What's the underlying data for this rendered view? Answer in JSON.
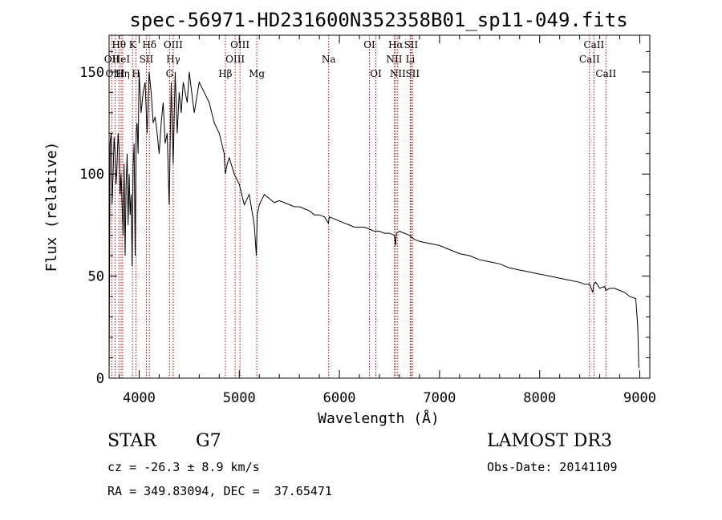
{
  "chart_data": {
    "type": "line",
    "title": "spec-56971-HD231600N352358B01_sp11-049.fits",
    "xlabel": "Wavelength (Å)",
    "ylabel": "Flux (relative)",
    "xlim": [
      3700,
      9100
    ],
    "ylim": [
      0,
      168
    ],
    "xticks": [
      4000,
      5000,
      6000,
      7000,
      8000,
      9000
    ],
    "yticks": [
      0,
      50,
      100,
      150
    ],
    "grid": false,
    "series": [
      {
        "name": "flux",
        "x": [
          3700,
          3710,
          3720,
          3730,
          3740,
          3750,
          3760,
          3770,
          3780,
          3790,
          3800,
          3810,
          3820,
          3830,
          3840,
          3850,
          3860,
          3870,
          3880,
          3890,
          3900,
          3910,
          3920,
          3930,
          3940,
          3950,
          3960,
          3970,
          3980,
          3990,
          4000,
          4020,
          4040,
          4060,
          4080,
          4100,
          4120,
          4140,
          4160,
          4180,
          4200,
          4220,
          4240,
          4260,
          4280,
          4300,
          4320,
          4340,
          4360,
          4380,
          4400,
          4420,
          4440,
          4460,
          4480,
          4500,
          4550,
          4600,
          4650,
          4700,
          4750,
          4800,
          4850,
          4860,
          4880,
          4900,
          4950,
          5000,
          5050,
          5100,
          5150,
          5170,
          5180,
          5200,
          5250,
          5300,
          5350,
          5400,
          5450,
          5500,
          5550,
          5600,
          5650,
          5700,
          5750,
          5800,
          5850,
          5890,
          5900,
          5950,
          6000,
          6050,
          6100,
          6150,
          6200,
          6250,
          6300,
          6350,
          6400,
          6450,
          6500,
          6550,
          6560,
          6570,
          6600,
          6650,
          6700,
          6750,
          6800,
          6900,
          7000,
          7100,
          7200,
          7300,
          7400,
          7500,
          7600,
          7650,
          7700,
          7800,
          7900,
          8000,
          8100,
          8200,
          8300,
          8400,
          8450,
          8500,
          8530,
          8540,
          8560,
          8600,
          8650,
          8660,
          8700,
          8750,
          8800,
          8850,
          8900,
          8960,
          8980,
          8990
        ],
        "values": [
          0,
          115,
          120,
          85,
          100,
          118,
          110,
          95,
          105,
          120,
          112,
          90,
          100,
          85,
          70,
          105,
          60,
          95,
          110,
          75,
          100,
          80,
          90,
          55,
          105,
          115,
          60,
          120,
          125,
          110,
          150,
          130,
          140,
          145,
          120,
          150,
          140,
          125,
          128,
          120,
          110,
          125,
          135,
          115,
          120,
          85,
          145,
          105,
          150,
          120,
          140,
          130,
          145,
          140,
          135,
          150,
          130,
          145,
          140,
          135,
          125,
          120,
          110,
          100,
          105,
          108,
          100,
          95,
          85,
          90,
          75,
          60,
          80,
          85,
          90,
          88,
          86,
          87,
          86,
          85,
          84,
          84,
          83,
          82,
          80,
          80,
          79,
          76,
          79,
          78,
          77,
          76,
          75,
          74,
          74,
          74,
          73,
          72,
          72,
          71,
          71,
          70,
          65,
          71,
          72,
          71,
          70,
          68,
          67,
          66,
          65,
          63,
          61,
          60,
          58,
          57,
          56,
          55,
          54,
          53,
          52,
          51,
          50,
          49,
          48,
          47,
          46,
          46,
          42,
          46,
          47,
          44,
          45,
          43,
          44,
          44,
          43,
          42,
          40,
          39,
          25,
          5
        ]
      }
    ],
    "lines": [
      {
        "name": "HE",
        "wave": 3798,
        "label": "Hθ",
        "row": 0
      },
      {
        "name": "OII",
        "wave": 3727,
        "label": "OII",
        "row": 1
      },
      {
        "name": "OIII",
        "wave": 3760,
        "label": "OIII",
        "row": 2
      },
      {
        "name": "He1",
        "wave": 3820,
        "label": "HeI",
        "row": 1
      },
      {
        "name": "Heta",
        "wave": 3835,
        "label": "Hη",
        "row": 2
      },
      {
        "name": "K",
        "wave": 3934,
        "label": "K",
        "row": 0
      },
      {
        "name": "H",
        "wave": 3969,
        "label": "H",
        "row": 2
      },
      {
        "name": "SII4072",
        "wave": 4072,
        "label": "SII",
        "row": 1
      },
      {
        "name": "Hdelta",
        "wave": 4102,
        "label": "Hδ",
        "row": 0
      },
      {
        "name": "OIII4363",
        "wave": 4340,
        "label": "OIII",
        "row": 0
      },
      {
        "name": "Hgamma",
        "wave": 4341,
        "label": "Hγ",
        "row": 1
      },
      {
        "name": "G",
        "wave": 4304,
        "label": "G",
        "row": 2
      },
      {
        "name": "Hbeta",
        "wave": 4861,
        "label": "Hβ",
        "row": 2
      },
      {
        "name": "OIII4959",
        "wave": 4959,
        "label": "OIII",
        "row": 1
      },
      {
        "name": "OIII5007",
        "wave": 5007,
        "label": "OIII",
        "row": 0
      },
      {
        "name": "Mg",
        "wave": 5175,
        "label": "Mg",
        "row": 2
      },
      {
        "name": "Na",
        "wave": 5893,
        "label": "Na",
        "row": 1
      },
      {
        "name": "OI6300",
        "wave": 6300,
        "label": "OI",
        "row": 0
      },
      {
        "name": "OI6364",
        "wave": 6364,
        "label": "OI",
        "row": 2
      },
      {
        "name": "NII6548",
        "wave": 6548,
        "label": "NII",
        "row": 1
      },
      {
        "name": "Halpha",
        "wave": 6563,
        "label": "Hα",
        "row": 0
      },
      {
        "name": "NII6583",
        "wave": 6583,
        "label": "NII",
        "row": 2
      },
      {
        "name": "Li",
        "wave": 6708,
        "label": "Li",
        "row": 1
      },
      {
        "name": "SII6716",
        "wave": 6716,
        "label": "SII",
        "row": 0
      },
      {
        "name": "SII6731",
        "wave": 6731,
        "label": "SII",
        "row": 2
      },
      {
        "name": "CaII8498",
        "wave": 8498,
        "label": "CaII",
        "row": 1
      },
      {
        "name": "CaII8542",
        "wave": 8542,
        "label": "CaII",
        "row": 0
      },
      {
        "name": "CaII8662",
        "wave": 8662,
        "label": "CaII",
        "row": 2
      }
    ]
  },
  "footer": {
    "object_type": "STAR",
    "subclass": "G7",
    "survey": "LAMOST DR3",
    "cz": "cz = -26.3 ± 8.9 km/s",
    "obs_date": "Obs-Date: 20141109",
    "radec": "RA = 349.83094, DEC =  37.65471"
  },
  "colors": {
    "spectrum": "#000000",
    "line_marker": "#c00000",
    "axis": "#000000"
  }
}
